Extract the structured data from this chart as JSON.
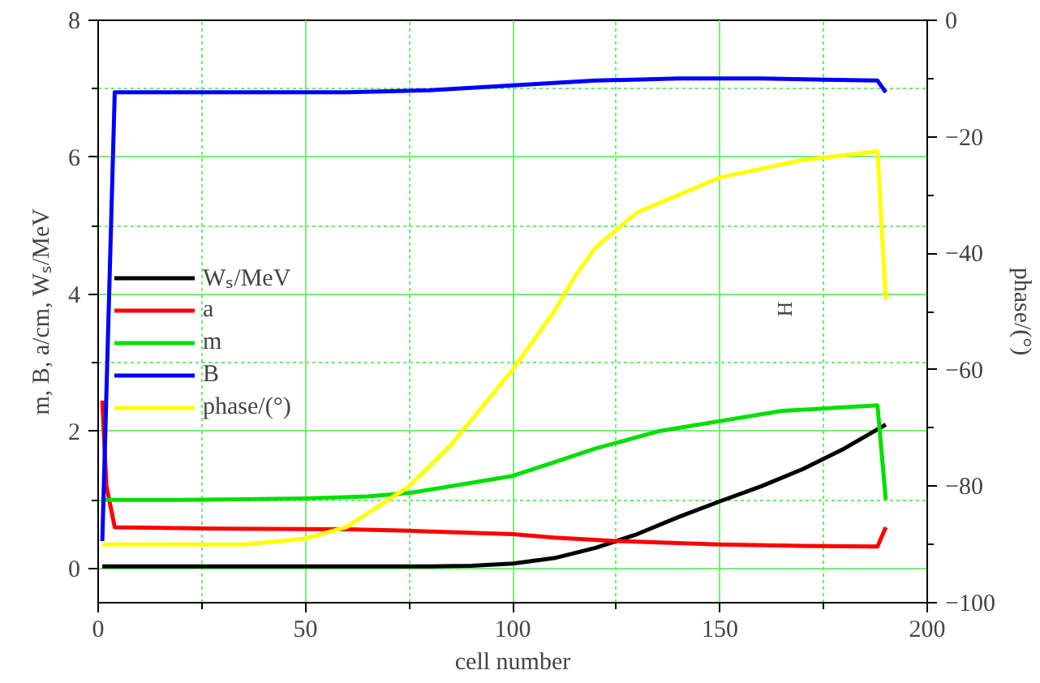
{
  "chart_data": {
    "type": "line",
    "xlabel": "cell number",
    "ylabel": "m, B, a/cm, Wₛ/MeV",
    "y2label": "phase/(°)",
    "xlim": [
      0,
      200
    ],
    "xticks": [
      0,
      {
        "value": 25,
        "label": null
      },
      50,
      {
        "value": 75,
        "label": null
      },
      100,
      {
        "value": 125,
        "label": null
      },
      150,
      {
        "value": 175,
        "label": null
      },
      200
    ],
    "ylim": [
      -0.5,
      8
    ],
    "yticks": [
      0,
      {
        "value": 1,
        "label": null
      },
      2,
      {
        "value": 3,
        "label": null
      },
      4,
      {
        "value": 5,
        "label": null
      },
      6,
      {
        "value": 7,
        "label": null
      },
      8
    ],
    "y2lim": [
      -100,
      0
    ],
    "y2ticks": [
      {
        "value": -100,
        "label": "−100"
      },
      {
        "value": -90,
        "label": null
      },
      {
        "value": -80,
        "label": "−80"
      },
      {
        "value": -70,
        "label": null
      },
      {
        "value": -60,
        "label": "−60"
      },
      {
        "value": -50,
        "label": null
      },
      {
        "value": -40,
        "label": "−40"
      },
      {
        "value": -30,
        "label": null
      },
      {
        "value": -20,
        "label": "−20"
      },
      {
        "value": -10,
        "label": null
      },
      0
    ],
    "grid": true,
    "legend": "left",
    "line_style": "solid",
    "marker": "none",
    "annotations": [
      "H"
    ],
    "series": [
      {
        "name": "Wₛ/MeV",
        "color": "#000000",
        "x": [
          1,
          20,
          50,
          80,
          90,
          100,
          110,
          120,
          130,
          140,
          150,
          160,
          170,
          180,
          190
        ],
        "values": [
          0.03,
          0.03,
          0.03,
          0.03,
          0.04,
          0.07,
          0.15,
          0.3,
          0.5,
          0.75,
          0.98,
          1.2,
          1.45,
          1.75,
          2.1
        ]
      },
      {
        "name": "a",
        "color": "#ff0000",
        "x": [
          1,
          2,
          4,
          30,
          60,
          75,
          100,
          110,
          125,
          150,
          170,
          188,
          190
        ],
        "values": [
          2.45,
          1.2,
          0.6,
          0.58,
          0.57,
          0.55,
          0.5,
          0.45,
          0.4,
          0.35,
          0.33,
          0.32,
          0.6
        ]
      },
      {
        "name": "m",
        "color": "#00e000",
        "x": [
          1,
          20,
          50,
          65,
          75,
          90,
          100,
          110,
          120,
          135,
          150,
          165,
          188,
          190
        ],
        "values": [
          1.0,
          1.0,
          1.02,
          1.05,
          1.1,
          1.25,
          1.35,
          1.55,
          1.75,
          2.0,
          2.15,
          2.3,
          2.38,
          1.0
        ]
      },
      {
        "name": "B",
        "color": "#0000ff",
        "x": [
          1,
          4,
          30,
          60,
          80,
          100,
          120,
          140,
          160,
          188,
          190
        ],
        "values": [
          0.4,
          6.95,
          6.95,
          6.95,
          6.98,
          7.05,
          7.12,
          7.15,
          7.15,
          7.12,
          6.95
        ]
      },
      {
        "name": "phase/(°)",
        "color": "#ffff00",
        "axis": "y2",
        "x": [
          1,
          20,
          35,
          50,
          60,
          75,
          85,
          100,
          110,
          115,
          120,
          130,
          140,
          150,
          170,
          188,
          190
        ],
        "values": [
          -90,
          -90,
          -90,
          -89,
          -87,
          -80,
          -73,
          -60,
          -50,
          -44,
          -39,
          -33,
          -30,
          -27,
          -24,
          -22.5,
          -48
        ]
      }
    ]
  }
}
